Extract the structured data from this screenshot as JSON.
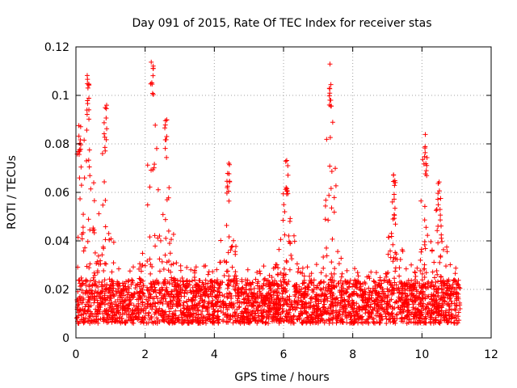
{
  "chart_data": {
    "type": "scatter",
    "title": "Day 091 of 2015, Rate Of TEC Index for receiver stas",
    "xlabel": "GPS time / hours",
    "ylabel": "ROTI / TECUs",
    "xlim": [
      0,
      12
    ],
    "ylim": [
      0,
      0.12
    ],
    "xticks": [
      0,
      2,
      4,
      6,
      8,
      10,
      12
    ],
    "yticks": [
      0,
      0.02,
      0.04,
      0.06,
      0.08,
      0.1,
      0.12
    ],
    "grid": true,
    "marker": "+",
    "color": "#ff0000",
    "time_range": [
      0.02,
      11.1
    ],
    "baseline_roti": [
      0.006,
      0.024
    ],
    "activity_peaks": [
      {
        "time": 0.1,
        "roti": 0.092
      },
      {
        "time": 0.35,
        "roti": 0.11
      },
      {
        "time": 0.85,
        "roti": 0.096
      },
      {
        "time": 2.2,
        "roti": 0.118
      },
      {
        "time": 2.6,
        "roti": 0.094
      },
      {
        "time": 4.4,
        "roti": 0.077
      },
      {
        "time": 6.1,
        "roti": 0.079
      },
      {
        "time": 7.35,
        "roti": 0.114
      },
      {
        "time": 9.2,
        "roti": 0.069
      },
      {
        "time": 10.1,
        "roti": 0.085
      },
      {
        "time": 10.5,
        "roti": 0.065
      }
    ]
  }
}
